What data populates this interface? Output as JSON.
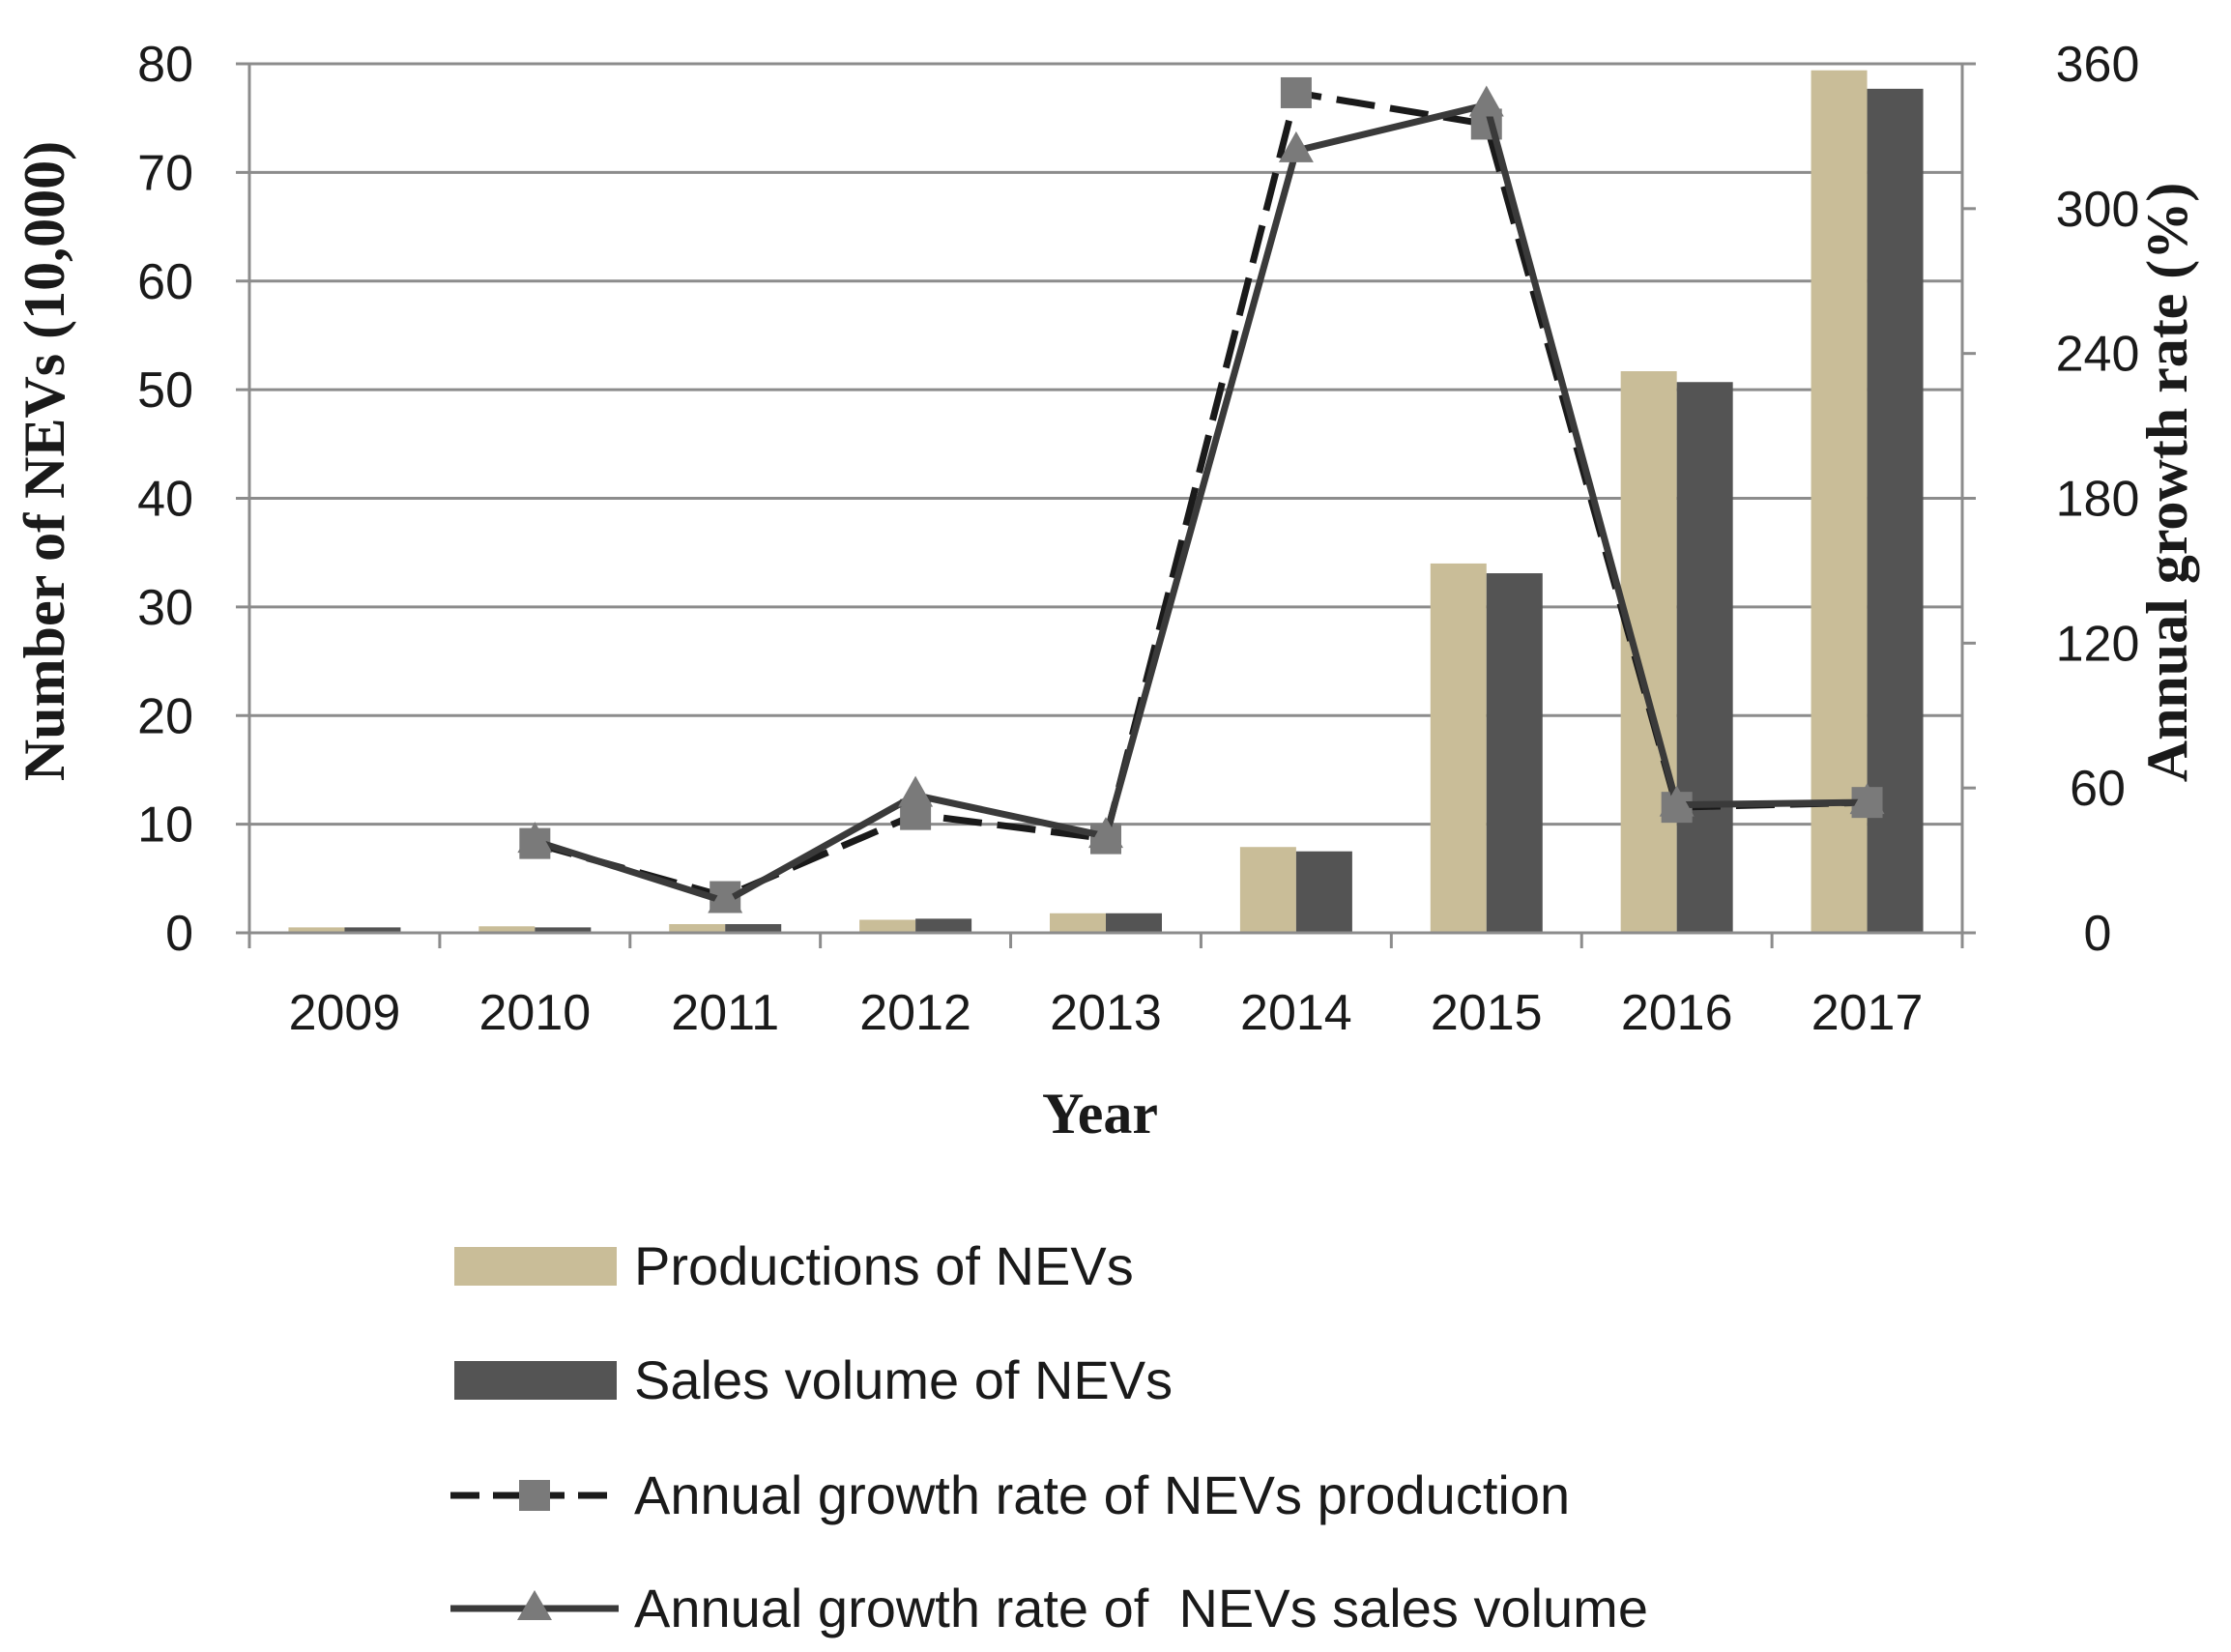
{
  "chart_data": {
    "type": "bar+line",
    "categories": [
      "2009",
      "2010",
      "2011",
      "2012",
      "2013",
      "2014",
      "2015",
      "2016",
      "2017"
    ],
    "series": [
      {
        "name": "Productions of NEVs",
        "kind": "bar",
        "axis": "left",
        "color": "#c9bd98",
        "values": [
          0.5,
          0.6,
          0.8,
          1.2,
          1.8,
          7.9,
          34.0,
          51.7,
          79.4
        ]
      },
      {
        "name": "Sales volume of NEVs",
        "kind": "bar",
        "axis": "left",
        "color": "#545454",
        "values": [
          0.5,
          0.5,
          0.8,
          1.3,
          1.8,
          7.5,
          33.1,
          50.7,
          77.7
        ]
      },
      {
        "name": "Annual growth rate of NEVs production",
        "kind": "line",
        "axis": "right",
        "color": "#1a1a1a",
        "marker": "square",
        "marker_color": "#7a7a7a",
        "dash": true,
        "values": [
          null,
          37,
          15,
          49,
          39,
          348,
          335,
          52,
          54
        ]
      },
      {
        "name": "Annual growth rate of  NEVs sales volume",
        "kind": "line",
        "axis": "right",
        "color": "#3a3a3a",
        "marker": "triangle",
        "marker_color": "#7a7a7a",
        "dash": false,
        "values": [
          null,
          38,
          13,
          57,
          40,
          324,
          343,
          53,
          54
        ]
      }
    ],
    "xlabel": "Year",
    "ylabel": "Number of NEVs (10,000)",
    "y2label": "Annual growth rate (%)",
    "ylim": [
      0,
      80
    ],
    "y2lim": [
      0,
      360
    ],
    "yticks": [
      "0",
      "10",
      "20",
      "30",
      "40",
      "50",
      "60",
      "70",
      "80"
    ],
    "y2ticks": [
      "0",
      "60",
      "120",
      "180",
      "240",
      "300",
      "360"
    ],
    "grid": true,
    "legend_position": "bottom"
  }
}
